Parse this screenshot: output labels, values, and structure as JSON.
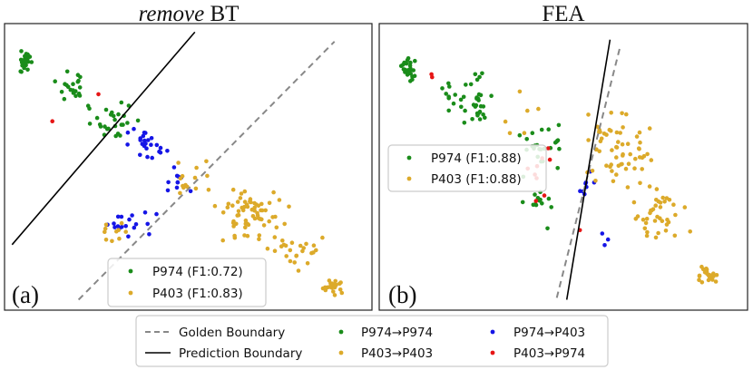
{
  "colors": {
    "p974_correct": "#1a8c1a",
    "p403_correct": "#dcaa2a",
    "p974_to_p403": "#1515e6",
    "p403_to_p974": "#e61515",
    "golden": "#888888",
    "prediction": "#000000"
  },
  "chart_data": [
    {
      "type": "scatter",
      "panel": "(a)",
      "title": "remove BT",
      "title_italic_part": "remove",
      "title_plain_part": " BT",
      "legend": [
        {
          "label": "P974 (F1:0.72)",
          "color_key": "p974_correct"
        },
        {
          "label": "P403 (F1:0.83)",
          "color_key": "p403_correct"
        }
      ],
      "golden_boundary": [
        [
          3.4,
          14.7
        ],
        [
          -0.3,
          1.4
        ]
      ],
      "prediction_boundary": [
        [
          -7.0,
          5.8
        ],
        [
          1.6,
          14.4
        ]
      ]
    },
    {
      "type": "scatter",
      "panel": "(b)",
      "title": "FEA",
      "legend": [
        {
          "label": "P974 (F1:0.88)",
          "color_key": "p974_correct"
        },
        {
          "label": "P403 (F1:0.88)",
          "color_key": "p403_correct"
        }
      ],
      "golden_boundary": [
        [
          7.0,
          14.8
        ],
        [
          3.0,
          1.2
        ]
      ],
      "prediction_boundary": [
        [
          6.6,
          14.8
        ],
        [
          4.8,
          1.4
        ]
      ]
    }
  ],
  "bottom_legend": {
    "golden_label": "Golden Boundary",
    "prediction_label": "Prediction Boundary",
    "c1": "P974→P974",
    "c2": "P403→P403",
    "c3": "P974→P403",
    "c4": "P403→P974"
  }
}
